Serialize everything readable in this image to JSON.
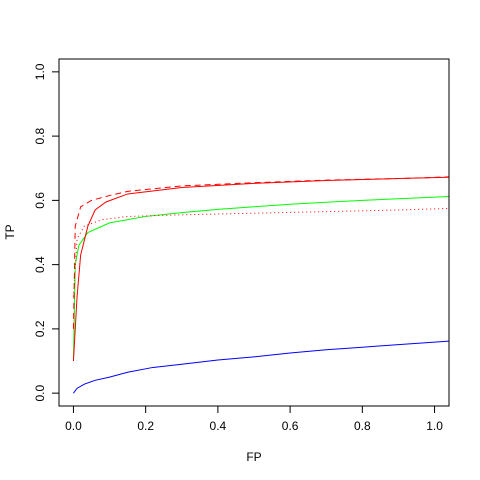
{
  "chart_data": {
    "type": "line",
    "xlabel": "FP",
    "ylabel": "TP",
    "xlim": [
      -0.04,
      1.04
    ],
    "ylim": [
      -0.04,
      1.04
    ],
    "xticks": [
      {
        "value": 0,
        "label": "0.0"
      },
      0.2,
      0.4,
      0.6,
      0.8,
      {
        "value": 1,
        "label": "1.0"
      }
    ],
    "yticks": [
      {
        "value": 0,
        "label": "0.0"
      },
      0.2,
      0.4,
      0.6,
      0.8,
      {
        "value": 1,
        "label": "1.0"
      }
    ],
    "grid": false,
    "series": [
      {
        "color": "#0000ff",
        "linestyle": "solid",
        "x": [
          0,
          0.01,
          0.03,
          0.06,
          0.1,
          0.15,
          0.22,
          0.3,
          0.4,
          0.5,
          0.6,
          0.7,
          0.8,
          0.9,
          1.04
        ],
        "values": [
          0,
          0.015,
          0.028,
          0.04,
          0.05,
          0.065,
          0.08,
          0.09,
          0.103,
          0.113,
          0.125,
          0.135,
          0.143,
          0.151,
          0.162
        ]
      },
      {
        "color": "#00ff00",
        "linestyle": "solid",
        "x": [
          0,
          0.005,
          0.015,
          0.04,
          0.1,
          0.2,
          0.3,
          0.4,
          0.5,
          0.6,
          0.7,
          0.8,
          0.9,
          1.04
        ],
        "values": [
          0.1,
          0.4,
          0.46,
          0.5,
          0.53,
          0.55,
          0.562,
          0.572,
          0.58,
          0.588,
          0.594,
          0.6,
          0.605,
          0.612
        ]
      },
      {
        "color": "#ff0000",
        "linestyle": "solid",
        "x": [
          0,
          0.01,
          0.02,
          0.04,
          0.06,
          0.09,
          0.15,
          0.3,
          0.5,
          0.7,
          0.9,
          1.04
        ],
        "values": [
          0.1,
          0.3,
          0.43,
          0.52,
          0.57,
          0.595,
          0.62,
          0.64,
          0.653,
          0.662,
          0.668,
          0.672
        ]
      },
      {
        "color": "#ff0000",
        "linestyle": "dashed",
        "x": [
          0,
          0.005,
          0.02,
          0.05,
          0.1,
          0.15,
          0.3,
          0.5,
          0.7,
          0.9,
          1.04
        ],
        "values": [
          0.2,
          0.52,
          0.58,
          0.6,
          0.615,
          0.628,
          0.645,
          0.655,
          0.663,
          0.668,
          0.673
        ]
      },
      {
        "color": "#ff0000",
        "linestyle": "dotted",
        "x": [
          0,
          0.01,
          0.03,
          0.08,
          0.15,
          0.3,
          0.5,
          0.7,
          0.9,
          1.04
        ],
        "values": [
          0.3,
          0.48,
          0.52,
          0.54,
          0.55,
          0.555,
          0.56,
          0.565,
          0.57,
          0.575
        ]
      }
    ]
  }
}
